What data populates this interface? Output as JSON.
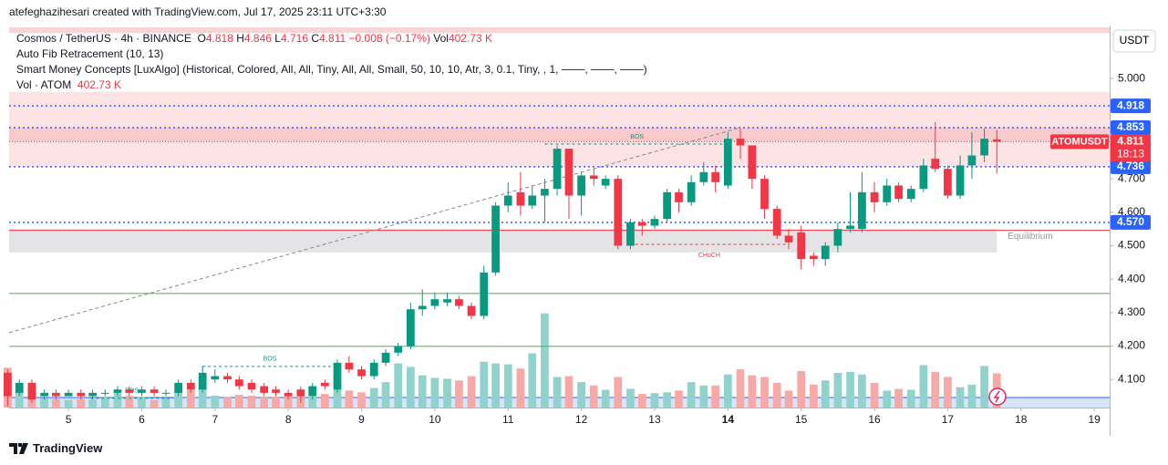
{
  "header": "atefeghazihesari created with TradingView.com, Jul 17, 2025 23:11 UTC+3:30",
  "footer": "TradingView",
  "legend": {
    "symbol": "Cosmos / TetherUS · 4h · BINANCE",
    "ohlc": [
      {
        "label": "O",
        "value": "4.818"
      },
      {
        "label": "H",
        "value": "4.846"
      },
      {
        "label": "L",
        "value": "4.716"
      },
      {
        "label": "C",
        "value": "4.811"
      }
    ],
    "change": "−0.008 (−0.17%)",
    "vol_label": "Vol",
    "vol_value": "402.73 K",
    "indicators": [
      "Auto Fib Retracement (10, 13)",
      "Smart Money Concepts [LuxAlgo] (Historical, Colored, All, All, Tiny, All, All, Small, 50, 10, 10, Atr, 3, 0.1, Tiny, , 1, ───, ───, ───)"
    ],
    "volume_indicator": "Vol · ATOM",
    "volume_indicator_value": "402.73 K"
  },
  "chart_data": {
    "type": "candlestick",
    "currency": "USDT",
    "x": [
      4.17,
      4.33,
      4.5,
      4.67,
      4.83,
      5,
      5.17,
      5.33,
      5.5,
      5.67,
      5.83,
      6,
      6.17,
      6.33,
      6.5,
      6.67,
      6.83,
      7,
      7.17,
      7.33,
      7.5,
      7.67,
      7.83,
      8,
      8.17,
      8.33,
      8.5,
      8.67,
      8.83,
      9,
      9.17,
      9.33,
      9.5,
      9.67,
      9.83,
      10,
      10.17,
      10.33,
      10.5,
      10.67,
      10.83,
      11,
      11.17,
      11.33,
      11.5,
      11.67,
      11.83,
      12,
      12.17,
      12.33,
      12.5,
      12.67,
      12.83,
      13,
      13.17,
      13.33,
      13.5,
      13.67,
      13.83,
      14,
      14.17,
      14.33,
      14.5,
      14.67,
      14.83,
      15,
      15.17,
      15.33,
      15.5,
      15.67,
      15.83,
      16,
      16.17,
      16.33,
      16.5,
      16.67,
      16.83,
      17,
      17.17,
      17.33,
      17.5,
      17.67
    ],
    "open": [
      4.12,
      4.06,
      4.09,
      4.05,
      4.06,
      4.05,
      4.06,
      4.05,
      4.06,
      4.06,
      4.07,
      4.06,
      4.07,
      4.06,
      4.06,
      4.09,
      4.07,
      4.1,
      4.11,
      4.1,
      4.09,
      4.08,
      4.07,
      4.06,
      4.07,
      4.05,
      4.09,
      4.07,
      4.15,
      4.13,
      4.11,
      4.15,
      4.18,
      4.2,
      4.31,
      4.32,
      4.33,
      4.34,
      4.32,
      4.29,
      4.42,
      4.62,
      4.66,
      4.62,
      4.65,
      4.67,
      4.79,
      4.65,
      4.71,
      4.68,
      4.7,
      4.5,
      4.57,
      4.56,
      4.58,
      4.66,
      4.63,
      4.69,
      4.72,
      4.68,
      4.82,
      4.8,
      4.7,
      4.61,
      4.53,
      4.54,
      4.47,
      4.46,
      4.5,
      4.55,
      4.55,
      4.66,
      4.63,
      4.68,
      4.64,
      4.67,
      4.76,
      4.73,
      4.65,
      4.74,
      4.77,
      4.818
    ],
    "high": [
      4.13,
      4.1,
      4.1,
      4.07,
      4.07,
      4.07,
      4.07,
      4.07,
      4.07,
      4.08,
      4.08,
      4.08,
      4.08,
      4.07,
      4.1,
      4.1,
      4.14,
      4.13,
      4.12,
      4.11,
      4.1,
      4.09,
      4.08,
      4.07,
      4.08,
      4.09,
      4.1,
      4.16,
      4.17,
      4.14,
      4.16,
      4.19,
      4.21,
      4.33,
      4.37,
      4.36,
      4.36,
      4.35,
      4.33,
      4.44,
      4.63,
      4.69,
      4.72,
      4.68,
      4.7,
      4.8,
      4.79,
      4.72,
      4.73,
      4.71,
      4.71,
      4.58,
      4.58,
      4.59,
      4.67,
      4.67,
      4.71,
      4.75,
      4.74,
      4.84,
      4.85,
      4.8,
      4.71,
      4.62,
      4.55,
      4.56,
      4.48,
      4.51,
      4.57,
      4.66,
      4.72,
      4.69,
      4.7,
      4.69,
      4.68,
      4.76,
      4.87,
      4.74,
      4.77,
      4.84,
      4.85,
      4.846
    ],
    "low": [
      4.02,
      4.05,
      4.03,
      4.04,
      4.04,
      4.05,
      4.04,
      4.04,
      4.05,
      4.05,
      4.05,
      4.05,
      4.05,
      4.05,
      4.05,
      4.06,
      4.06,
      4.09,
      4.09,
      4.07,
      4.06,
      4.05,
      4.05,
      4.04,
      4.03,
      4.04,
      4.07,
      4.06,
      4.12,
      4.1,
      4.1,
      4.14,
      4.17,
      4.19,
      4.29,
      4.31,
      4.32,
      4.31,
      4.28,
      4.28,
      4.41,
      4.6,
      4.59,
      4.61,
      4.57,
      4.65,
      4.58,
      4.59,
      4.68,
      4.67,
      4.49,
      4.49,
      4.53,
      4.55,
      4.57,
      4.6,
      4.62,
      4.68,
      4.66,
      4.67,
      4.76,
      4.67,
      4.58,
      4.52,
      4.49,
      4.43,
      4.44,
      4.44,
      4.48,
      4.54,
      4.54,
      4.6,
      4.62,
      4.63,
      4.63,
      4.66,
      4.72,
      4.64,
      4.64,
      4.7,
      4.75,
      4.716
    ],
    "close": [
      4.05,
      4.09,
      4.04,
      4.06,
      4.05,
      4.06,
      4.05,
      4.06,
      4.06,
      4.07,
      4.06,
      4.07,
      4.06,
      4.06,
      4.09,
      4.07,
      4.12,
      4.11,
      4.1,
      4.08,
      4.07,
      4.06,
      4.06,
      4.05,
      4.05,
      4.08,
      4.08,
      4.15,
      4.13,
      4.11,
      4.15,
      4.18,
      4.2,
      4.31,
      4.32,
      4.34,
      4.34,
      4.32,
      4.29,
      4.42,
      4.62,
      4.65,
      4.62,
      4.65,
      4.67,
      4.79,
      4.65,
      4.71,
      4.7,
      4.7,
      4.5,
      4.57,
      4.56,
      4.58,
      4.66,
      4.63,
      4.69,
      4.72,
      4.69,
      4.82,
      4.8,
      4.7,
      4.61,
      4.53,
      4.51,
      4.46,
      4.46,
      4.5,
      4.55,
      4.56,
      4.66,
      4.63,
      4.68,
      4.64,
      4.67,
      4.74,
      4.73,
      4.65,
      4.74,
      4.77,
      4.82,
      4.811
    ],
    "volume": [
      470,
      250,
      230,
      110,
      100,
      90,
      100,
      95,
      130,
      170,
      140,
      120,
      90,
      110,
      200,
      210,
      290,
      140,
      120,
      150,
      140,
      130,
      120,
      140,
      150,
      130,
      160,
      260,
      200,
      180,
      230,
      300,
      520,
      480,
      380,
      350,
      340,
      320,
      370,
      540,
      520,
      510,
      460,
      640,
      1110,
      360,
      370,
      300,
      260,
      210,
      360,
      220,
      160,
      170,
      180,
      200,
      300,
      260,
      260,
      390,
      450,
      380,
      360,
      290,
      200,
      430,
      270,
      320,
      410,
      420,
      390,
      290,
      200,
      220,
      210,
      500,
      420,
      360,
      240,
      270,
      490,
      402.73
    ],
    "volume_lim": [
      0,
      1150
    ],
    "up_color": "#089981",
    "down_color": "#f23645",
    "up_volume_color": "#92d2cc",
    "down_volume_color": "#f7a9a7",
    "xlim": [
      4.19,
      19.21
    ],
    "xticks": [
      5,
      6,
      7,
      8,
      9,
      10,
      11,
      12,
      13,
      14,
      15,
      16,
      17,
      18,
      19
    ],
    "bold_xtick": 14,
    "ylim": [
      4.016,
      5.153
    ],
    "yticks": [
      {
        "value": 4.1,
        "label": "4.100"
      },
      {
        "value": 4.2,
        "label": "4.200"
      },
      {
        "value": 4.3,
        "label": "4.300"
      },
      {
        "value": 4.4,
        "label": "4.400"
      },
      {
        "value": 4.5,
        "label": "4.500"
      },
      {
        "value": 4.6,
        "label": "4.600"
      },
      {
        "value": 4.7,
        "label": "4.700"
      },
      {
        "value": 5,
        "label": "5.000"
      }
    ],
    "zones": [
      {
        "from": 5.136,
        "to": 5.153,
        "x": [
          4.19,
          19.21
        ],
        "color": "#fbd5d6"
      },
      {
        "from": 4.736,
        "to": 4.96,
        "x": [
          4.19,
          19.21
        ],
        "color": "#fde3e4"
      },
      {
        "from": 4.812,
        "to": 4.853,
        "x": [
          4.19,
          19.21
        ],
        "color": "#f9c9cc"
      },
      {
        "from": 4.48,
        "to": 4.55,
        "x": [
          4.19,
          17.67
        ],
        "color": "#e4e4e6",
        "label": "Equilibrium"
      }
    ],
    "levels": [
      {
        "value": 4.546,
        "color": "#f23645"
      },
      {
        "value": 4.357,
        "color": "#4caf50"
      },
      {
        "value": 4.199,
        "color": "#4caf50"
      }
    ],
    "price_lines": [
      {
        "value": 4.918,
        "color": "#2962ff"
      },
      {
        "value": 4.853,
        "color": "#2962ff"
      },
      {
        "value": 4.736,
        "color": "#2962ff"
      },
      {
        "value": 4.57,
        "label": "4.570",
        "color": "#2962ff"
      }
    ],
    "current": {
      "symbol": "ATOMUSDT",
      "value": 4.811,
      "countdown": "18:13",
      "color": "#f23645"
    },
    "trendline": {
      "x": [
        4.19,
        14.17
      ],
      "y": [
        4.24,
        4.853
      ],
      "color": "#888888"
    },
    "annotations": [
      {
        "text": "BOS",
        "x": [
          11.5,
          14.02
        ],
        "y": 4.804,
        "color": "#089981",
        "side": "above"
      },
      {
        "text": "CHoCH",
        "x": [
          12.66,
          14.83
        ],
        "y": 4.504,
        "color": "#f23645",
        "side": "below"
      },
      {
        "text": "BOS",
        "x": [
          6.83,
          8.67
        ],
        "y": 4.139,
        "color": "#089981",
        "side": "above"
      },
      {
        "text": "BOS",
        "x": [
          5.3,
          6.43
        ],
        "y": 4.044,
        "color": "#089981",
        "side": "above"
      }
    ]
  }
}
